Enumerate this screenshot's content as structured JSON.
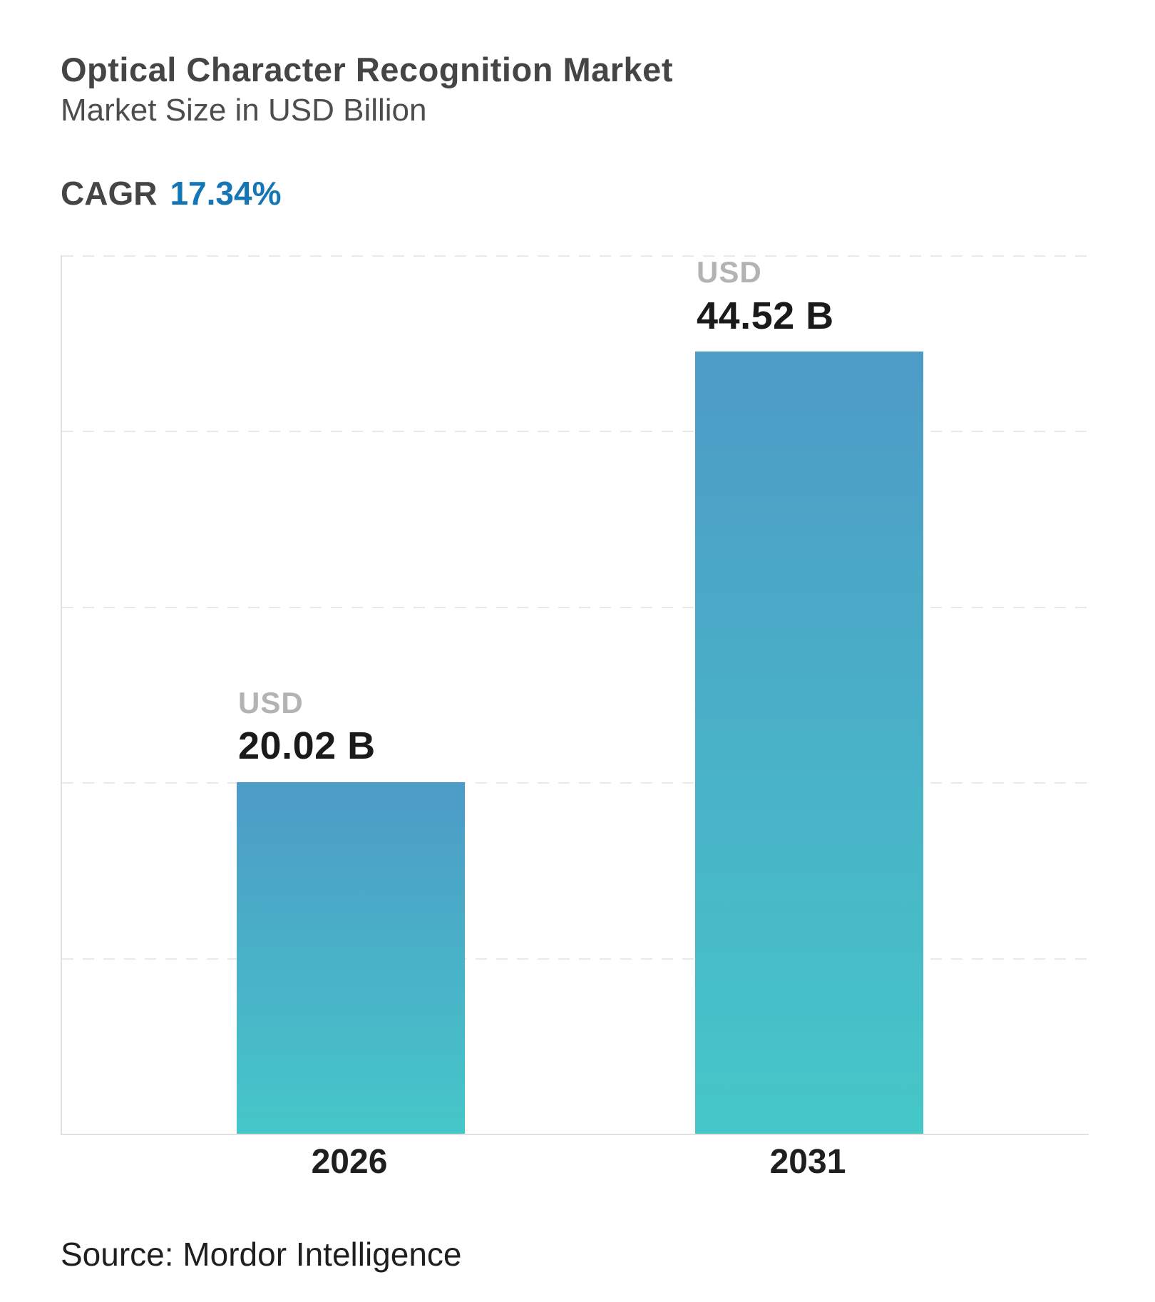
{
  "header": {
    "title": "Optical Character Recognition Market",
    "subtitle": "Market Size in USD Billion",
    "cagr_label": "CAGR",
    "cagr_value": "17.34%"
  },
  "footer": {
    "source": "Source: Mordor Intelligence"
  },
  "chart_data": {
    "type": "bar",
    "title": "Optical Character Recognition Market",
    "subtitle": "Market Size in USD Billion",
    "unit": "USD Billion",
    "cagr_percent": 17.34,
    "categories": [
      "2026",
      "2031"
    ],
    "values": [
      20.02,
      44.52
    ],
    "bar_labels": [
      {
        "prefix": "USD",
        "value": "20.02 B"
      },
      {
        "prefix": "USD",
        "value": "44.52 B"
      }
    ],
    "ylim": [
      0,
      50
    ],
    "grid": {
      "horizontal": true,
      "style": "dashed",
      "bands": 5,
      "y_tick_labels_shown": false
    },
    "legend": "none",
    "source": "Source: Mordor Intelligence",
    "colors": {
      "background": "#FFFFFF",
      "bar_gradient_top": "#4D9BC7",
      "bar_gradient_bottom": "#45C7C8",
      "accent_blue": "#1476B4",
      "title_gray": "#454545",
      "usd_label_gray": "#B3B3B3",
      "value_text": "#1A1A1A",
      "gridline": "#E9E9E9",
      "axis_border": "#E1E1E1"
    }
  }
}
